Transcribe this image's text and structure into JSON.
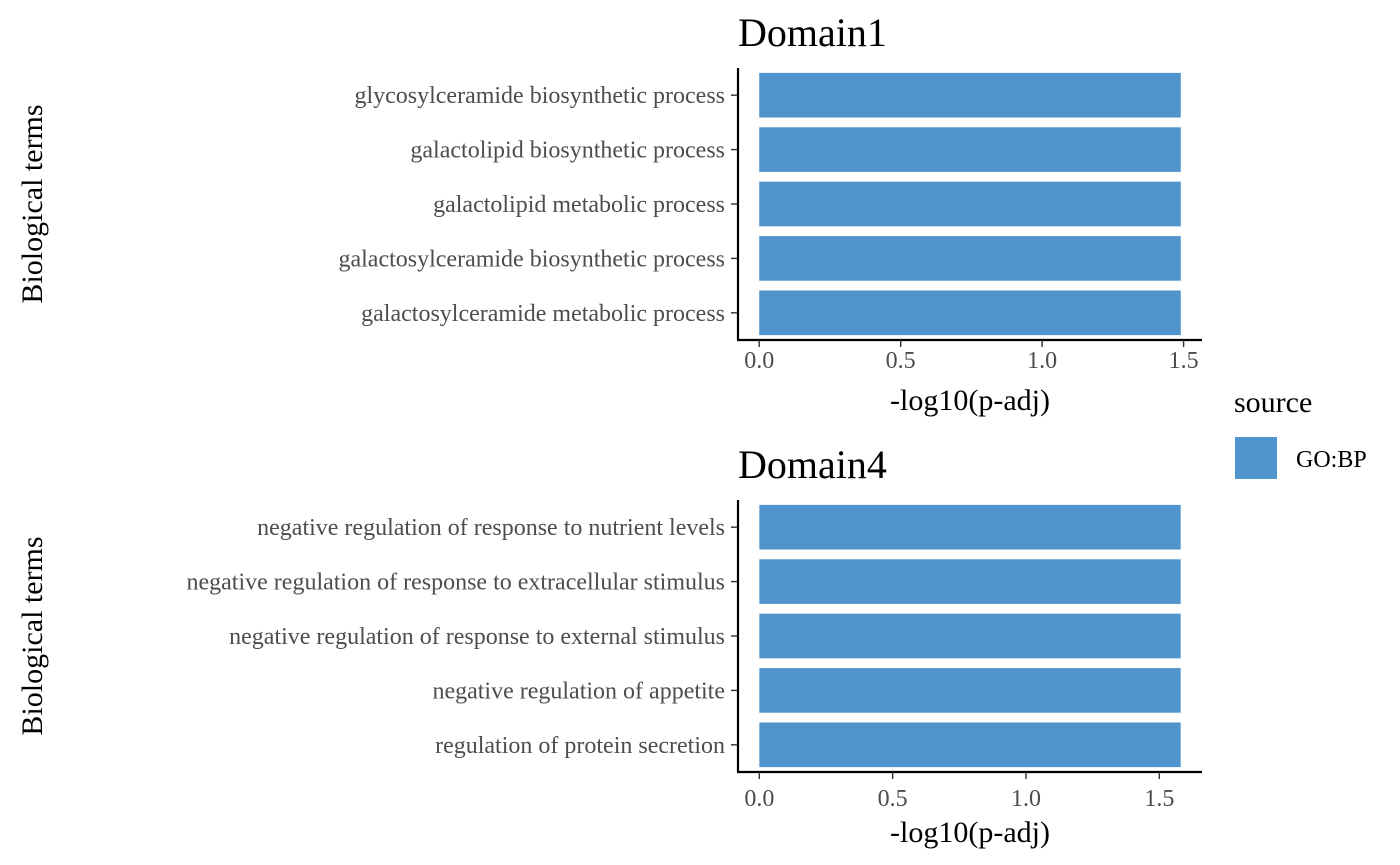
{
  "legend": {
    "title": "source",
    "items": [
      {
        "label": "GO:BP",
        "color": "#4F94CD"
      }
    ]
  },
  "chart_data": [
    {
      "type": "bar",
      "orientation": "horizontal",
      "title": "Domain1",
      "xlabel": "-log10(p-adj)",
      "ylabel": "Biological terms",
      "categories": [
        "glycosylceramide biosynthetic process",
        "galactolipid biosynthetic process",
        "galactolipid metabolic process",
        "galactosylceramide biosynthetic process",
        "galactosylceramide metabolic process"
      ],
      "values": [
        1.49,
        1.49,
        1.49,
        1.49,
        1.49
      ],
      "source": [
        "GO:BP",
        "GO:BP",
        "GO:BP",
        "GO:BP",
        "GO:BP"
      ],
      "xlim": [
        -0.075,
        1.565
      ],
      "xticks": [
        0,
        0.5,
        1,
        1.5
      ],
      "xtick_labels": [
        "0.0",
        "0.5",
        "1.0",
        "1.5"
      ],
      "grid": false
    },
    {
      "type": "bar",
      "orientation": "horizontal",
      "title": "Domain4",
      "xlabel": "-log10(p-adj)",
      "ylabel": "Biological terms",
      "categories": [
        "negative regulation of response to nutrient levels",
        "negative regulation of response to extracellular stimulus",
        "negative regulation of response to external stimulus",
        "negative regulation of appetite",
        "regulation of protein secretion"
      ],
      "values": [
        1.58,
        1.58,
        1.58,
        1.58,
        1.58
      ],
      "source": [
        "GO:BP",
        "GO:BP",
        "GO:BP",
        "GO:BP",
        "GO:BP"
      ],
      "xlim": [
        -0.08,
        1.66
      ],
      "xticks": [
        0,
        0.5,
        1,
        1.5
      ],
      "xtick_labels": [
        "0.0",
        "0.5",
        "1.0",
        "1.5"
      ],
      "grid": false
    }
  ]
}
